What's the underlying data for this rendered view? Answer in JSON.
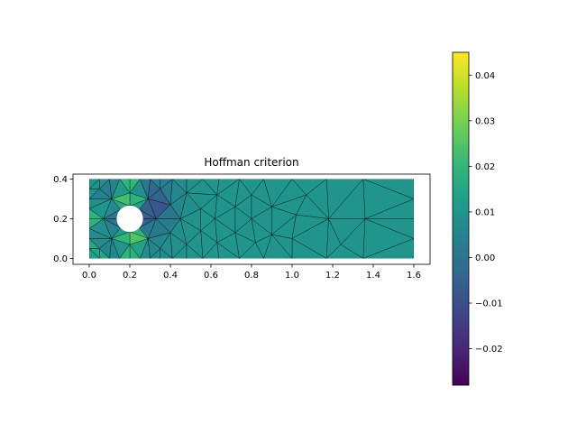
{
  "chart_data": {
    "type": "heatmap",
    "title": "Hoffman criterion",
    "xlabel": "",
    "ylabel": "",
    "xlim": [
      -0.08,
      1.68
    ],
    "ylim": [
      -0.03,
      0.425
    ],
    "xticks": [
      0.0,
      0.2,
      0.4,
      0.6,
      0.8,
      1.0,
      1.2,
      1.4,
      1.6
    ],
    "xtick_labels": [
      "0.0",
      "0.2",
      "0.4",
      "0.6",
      "0.8",
      "1.0",
      "1.2",
      "1.4",
      "1.6"
    ],
    "yticks": [
      0.0,
      0.2,
      0.4
    ],
    "ytick_labels": [
      "0.0",
      "0.2",
      "0.4"
    ],
    "domain": {
      "x": [
        0.0,
        1.6
      ],
      "y": [
        0.0,
        0.4
      ]
    },
    "hole": {
      "cx": 0.2,
      "cy": 0.2,
      "r": 0.065
    },
    "colormap": "viridis",
    "colorbar": {
      "vmin": -0.028,
      "vmax": 0.045,
      "ticks": [
        -0.02,
        -0.01,
        0.0,
        0.01,
        0.02,
        0.03,
        0.04
      ],
      "tick_labels": [
        "−0.02",
        "−0.01",
        "0.00",
        "0.01",
        "0.02",
        "0.03",
        "0.04"
      ]
    },
    "mesh_nodes": [
      [
        0.0,
        0.4
      ],
      [
        0.05,
        0.4
      ],
      [
        0.1,
        0.4
      ],
      [
        0.15,
        0.4
      ],
      [
        0.2,
        0.4
      ],
      [
        0.25,
        0.4
      ],
      [
        0.3,
        0.4
      ],
      [
        0.35,
        0.4
      ],
      [
        0.41,
        0.4
      ],
      [
        0.48,
        0.4
      ],
      [
        0.56,
        0.4
      ],
      [
        0.64,
        0.4
      ],
      [
        0.74,
        0.4
      ],
      [
        0.86,
        0.4
      ],
      [
        1.0,
        0.4
      ],
      [
        1.17,
        0.4
      ],
      [
        1.35,
        0.4
      ],
      [
        1.6,
        0.4
      ],
      [
        0.0,
        0.0
      ],
      [
        0.05,
        0.0
      ],
      [
        0.1,
        0.0
      ],
      [
        0.15,
        0.0
      ],
      [
        0.2,
        0.0
      ],
      [
        0.25,
        0.0
      ],
      [
        0.3,
        0.0
      ],
      [
        0.35,
        0.0
      ],
      [
        0.41,
        0.0
      ],
      [
        0.48,
        0.0
      ],
      [
        0.56,
        0.0
      ],
      [
        0.64,
        0.0
      ],
      [
        0.74,
        0.0
      ],
      [
        0.86,
        0.0
      ],
      [
        1.0,
        0.0
      ],
      [
        1.17,
        0.0
      ],
      [
        1.35,
        0.0
      ],
      [
        1.6,
        0.0
      ],
      [
        0.0,
        0.05
      ],
      [
        0.0,
        0.1
      ],
      [
        0.0,
        0.15
      ],
      [
        0.0,
        0.2
      ],
      [
        0.0,
        0.25
      ],
      [
        0.0,
        0.3
      ],
      [
        0.0,
        0.35
      ],
      [
        1.6,
        0.1
      ],
      [
        1.6,
        0.2
      ],
      [
        1.6,
        0.3
      ],
      [
        0.265,
        0.2
      ],
      [
        0.246,
        0.246
      ],
      [
        0.2,
        0.265
      ],
      [
        0.154,
        0.246
      ],
      [
        0.135,
        0.2
      ],
      [
        0.154,
        0.154
      ],
      [
        0.2,
        0.135
      ],
      [
        0.246,
        0.154
      ],
      [
        0.2,
        0.33
      ],
      [
        0.29,
        0.3
      ],
      [
        0.33,
        0.2
      ],
      [
        0.29,
        0.1
      ],
      [
        0.2,
        0.07
      ],
      [
        0.11,
        0.1
      ],
      [
        0.07,
        0.2
      ],
      [
        0.11,
        0.3
      ],
      [
        0.05,
        0.35
      ],
      [
        0.05,
        0.05
      ],
      [
        0.35,
        0.35
      ],
      [
        0.35,
        0.05
      ],
      [
        0.4,
        0.27
      ],
      [
        0.4,
        0.13
      ],
      [
        0.45,
        0.2
      ],
      [
        0.48,
        0.33
      ],
      [
        0.48,
        0.07
      ],
      [
        0.55,
        0.25
      ],
      [
        0.55,
        0.14
      ],
      [
        0.62,
        0.2
      ],
      [
        0.63,
        0.32
      ],
      [
        0.63,
        0.08
      ],
      [
        0.72,
        0.26
      ],
      [
        0.72,
        0.13
      ],
      [
        0.8,
        0.2
      ],
      [
        0.8,
        0.32
      ],
      [
        0.82,
        0.08
      ],
      [
        0.9,
        0.26
      ],
      [
        0.9,
        0.12
      ],
      [
        1.02,
        0.22
      ],
      [
        1.0,
        0.1
      ],
      [
        1.07,
        0.32
      ],
      [
        1.18,
        0.2
      ],
      [
        1.24,
        0.07
      ],
      [
        1.36,
        0.2
      ]
    ],
    "mesh_values": [
      0.01,
      0.008,
      0.006,
      0.012,
      0.016,
      0.014,
      0.006,
      0.004,
      0.006,
      0.008,
      0.009,
      0.01,
      0.01,
      0.01,
      0.01,
      0.01,
      0.01,
      0.01,
      0.012,
      0.014,
      0.012,
      0.016,
      0.018,
      0.012,
      0.008,
      0.006,
      0.008,
      0.009,
      0.01,
      0.01,
      0.01,
      0.01,
      0.01,
      0.01,
      0.01,
      0.01,
      0.014,
      0.016,
      0.018,
      0.02,
      0.018,
      0.012,
      0.01,
      0.01,
      0.01,
      0.01,
      -0.022,
      0.01,
      0.045,
      0.008,
      -0.024,
      0.006,
      0.045,
      0.01,
      0.03,
      -0.018,
      -0.008,
      0.004,
      0.026,
      -0.012,
      0.018,
      -0.006,
      0.008,
      0.016,
      0.0,
      0.006,
      0.002,
      0.008,
      0.008,
      0.008,
      0.009,
      0.009,
      0.01,
      0.01,
      0.01,
      0.01,
      0.01,
      0.01,
      0.01,
      0.01,
      0.01,
      0.01,
      0.01,
      0.01,
      0.01,
      0.01,
      0.01,
      0.01,
      0.01
    ]
  }
}
